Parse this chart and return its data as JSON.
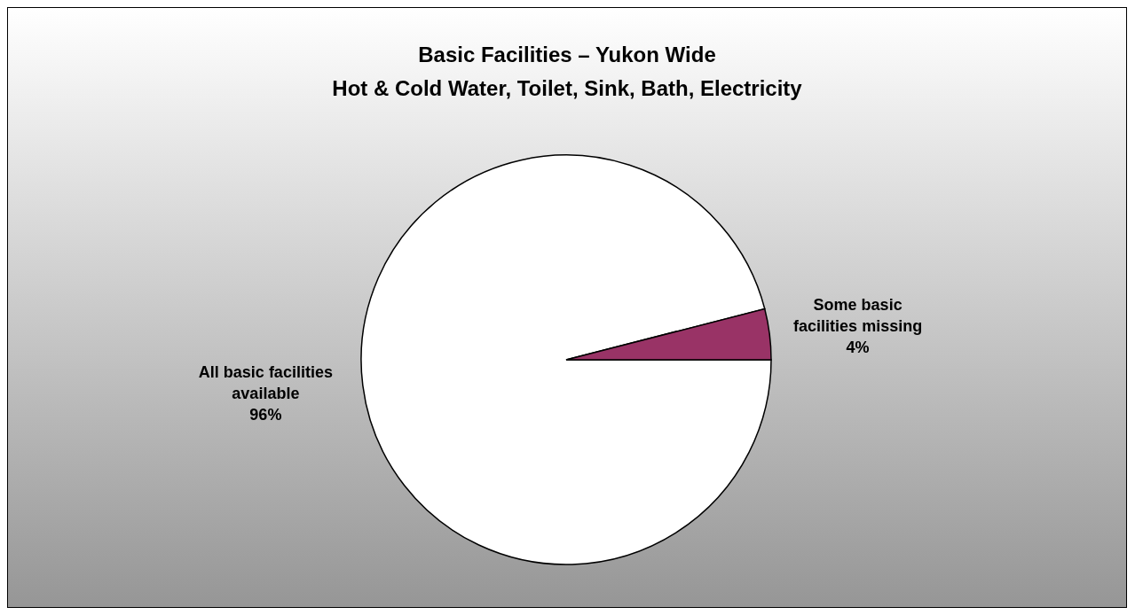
{
  "chart_data": {
    "type": "pie",
    "title": "Basic Facilities – Yukon Wide",
    "subtitle": "Hot & Cold Water, Toilet, Sink, Bath, Electricity",
    "categories": [
      "All basic facilities available",
      "Some basic facilities missing"
    ],
    "values": [
      96,
      4
    ],
    "colors": [
      "#ffffff",
      "#993366"
    ],
    "value_labels": [
      "96%",
      "4%"
    ]
  }
}
